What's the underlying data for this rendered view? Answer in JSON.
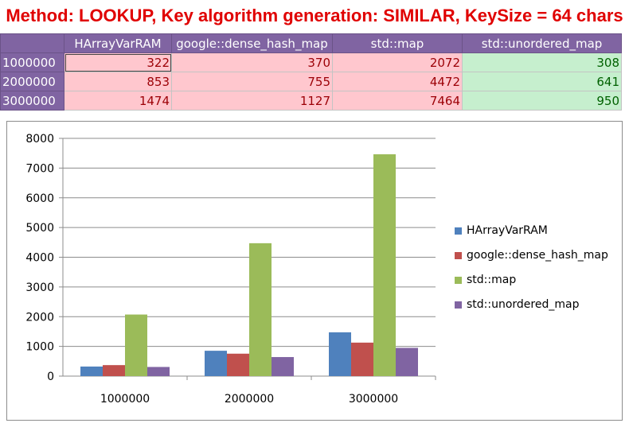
{
  "sheet": {
    "title": "Method: LOOKUP, Key algorithm generation: SIMILAR, KeySize = 64 chars",
    "columns": [
      "",
      "HArrayVarRAM",
      "google::dense_hash_map",
      "std::map",
      "std::unordered_map"
    ],
    "rows": [
      {
        "label": "1000000",
        "cells": [
          "322",
          "370",
          "2072",
          "308"
        ]
      },
      {
        "label": "2000000",
        "cells": [
          "853",
          "755",
          "4472",
          "641"
        ]
      },
      {
        "label": "3000000",
        "cells": [
          "1474",
          "1127",
          "7464",
          "950"
        ]
      }
    ],
    "colors": {
      "header_bg": "#8064a2",
      "slow_bg": "#ffc7ce",
      "slow_text": "#9c0006",
      "fast_bg": "#c6efce",
      "fast_text": "#006100",
      "title": "#e00000"
    }
  },
  "chart_data": {
    "type": "bar",
    "title": "",
    "xlabel": "",
    "ylabel": "",
    "categories": [
      "1000000",
      "2000000",
      "3000000"
    ],
    "series": [
      {
        "name": "HArrayVarRAM",
        "color": "#4f81bd",
        "values": [
          322,
          853,
          1474
        ]
      },
      {
        "name": "google::dense_hash_map",
        "color": "#c0504d",
        "values": [
          370,
          755,
          1127
        ]
      },
      {
        "name": "std::map",
        "color": "#9bbb59",
        "values": [
          2072,
          4472,
          7464
        ]
      },
      {
        "name": "std::unordered_map",
        "color": "#8064a2",
        "values": [
          308,
          641,
          950
        ]
      }
    ],
    "ylim": [
      0,
      8000
    ],
    "yticks": [
      "0",
      "1000",
      "2000",
      "3000",
      "4000",
      "5000",
      "6000",
      "7000",
      "8000"
    ],
    "grid": true,
    "legend": "right"
  }
}
